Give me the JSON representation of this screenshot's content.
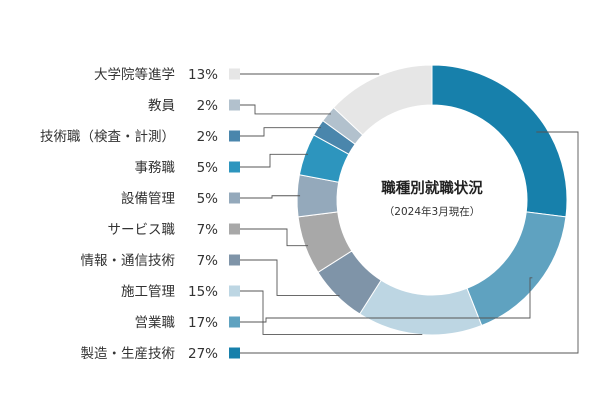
{
  "chart_data": {
    "type": "pie",
    "variant": "donut",
    "title": "職種別就職状況",
    "subtitle": "（2024年3月現在）",
    "unit": "%",
    "slices": [
      {
        "label": "製造・生産技術",
        "value": 27,
        "color": "#1780ab"
      },
      {
        "label": "営業職",
        "value": 17,
        "color": "#5fa2c0"
      },
      {
        "label": "施工管理",
        "value": 15,
        "color": "#bdd6e3"
      },
      {
        "label": "情報・通信技術",
        "value": 7,
        "color": "#7f94a8"
      },
      {
        "label": "サービス職",
        "value": 7,
        "color": "#a8a8a8"
      },
      {
        "label": "設備管理",
        "value": 5,
        "color": "#94a9bb"
      },
      {
        "label": "事務職",
        "value": 5,
        "color": "#2d95be"
      },
      {
        "label": "技術職（検査・計測）",
        "value": 2,
        "color": "#4a86ac"
      },
      {
        "label": "教員",
        "value": 2,
        "color": "#b2c1cd"
      },
      {
        "label": "大学院等進学",
        "value": 13,
        "color": "#e6e6e6"
      }
    ],
    "legend_position": "left"
  }
}
